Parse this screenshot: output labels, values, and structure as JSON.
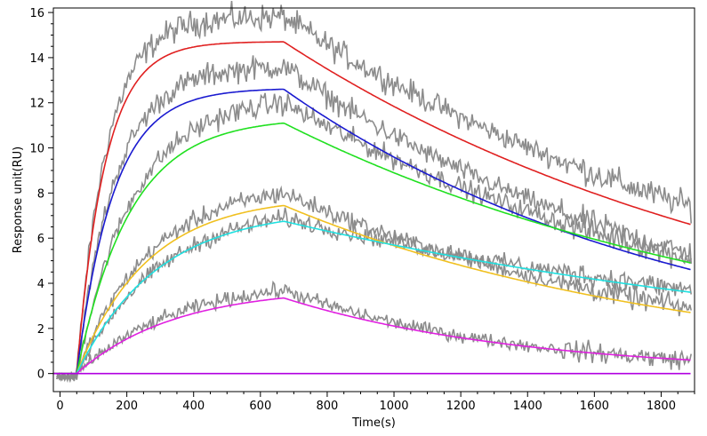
{
  "chart_data": {
    "type": "line",
    "title": "",
    "xlabel": "Time(s)",
    "ylabel": "Response unit(RU)",
    "xlim": [
      -20,
      1900
    ],
    "ylim": [
      -0.8,
      16.2
    ],
    "x_ticks": [
      0,
      200,
      400,
      600,
      800,
      1000,
      1200,
      1400,
      1600,
      1800
    ],
    "y_ticks": [
      0,
      2,
      4,
      6,
      8,
      10,
      12,
      14,
      16
    ],
    "grid": false,
    "legend": "none",
    "injection_start": 50,
    "injection_end": 670,
    "end_time": 1890,
    "raw_color": "#8c8c8c",
    "series": [
      {
        "color": "#e02020",
        "peak_value": 14.7,
        "raw_peak": 15.8,
        "end_value": 6.6,
        "raw_end": 7.4
      },
      {
        "color": "#1a1ad0",
        "peak_value": 12.6,
        "raw_peak": 13.6,
        "end_value": 4.6,
        "raw_end": 5.3
      },
      {
        "color": "#20e020",
        "peak_value": 11.1,
        "raw_peak": 12.0,
        "end_value": 4.9,
        "raw_end": 5.1
      },
      {
        "color": "#f0c020",
        "peak_value": 7.45,
        "raw_peak": 8.0,
        "end_value": 2.7,
        "raw_end": 2.9
      },
      {
        "color": "#20e0e0",
        "peak_value": 6.75,
        "raw_peak": 6.9,
        "end_value": 3.6,
        "raw_end": 3.7
      },
      {
        "color": "#e020e0",
        "peak_value": 3.35,
        "raw_peak": 3.7,
        "end_value": 0.6,
        "raw_end": 0.6
      },
      {
        "color": "#b000e0",
        "peak_value": 0.0,
        "raw_peak": 0.0,
        "end_value": 0.0,
        "raw_end": 0.0
      }
    ]
  }
}
